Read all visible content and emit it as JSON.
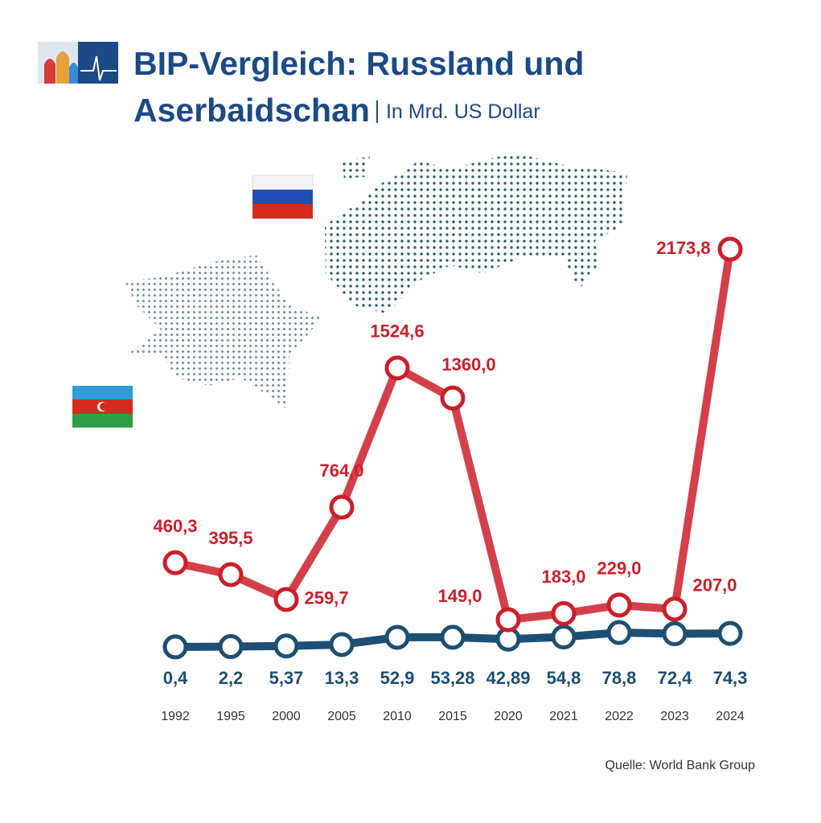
{
  "chart_data": {
    "type": "line",
    "title": "BIP-Vergleich: Russland und Aserbaidschan",
    "subtitle": "In Mrd. US Dollar",
    "source": "Quelle: World Bank Group",
    "categories": [
      "1992",
      "1995",
      "2000",
      "2005",
      "2010",
      "2015",
      "2020",
      "2021",
      "2022",
      "2023",
      "2024"
    ],
    "series": [
      {
        "name": "Russland",
        "color": "#cc1f2a",
        "values": [
          460.3,
          395.5,
          259.7,
          764.0,
          1524.6,
          1360.0,
          149.0,
          183.0,
          229.0,
          207.0,
          2173.8
        ],
        "value_labels": [
          "460,3",
          "395,5",
          "259,7",
          "764,0",
          "1524,6",
          "1360,0",
          "149,0",
          "183,0",
          "229,0",
          "207,0",
          "2173,8"
        ]
      },
      {
        "name": "Aserbaidschan",
        "color": "#1d4f73",
        "values": [
          0.4,
          2.2,
          5.37,
          13.3,
          52.9,
          53.28,
          42.89,
          54.8,
          78.8,
          72.4,
          74.3
        ],
        "value_labels": [
          "0,4",
          "2,2",
          "5,37",
          "13,3",
          "52,9",
          "53,28",
          "42,89",
          "54,8",
          "78,8",
          "72,4",
          "74,3"
        ]
      }
    ]
  }
}
